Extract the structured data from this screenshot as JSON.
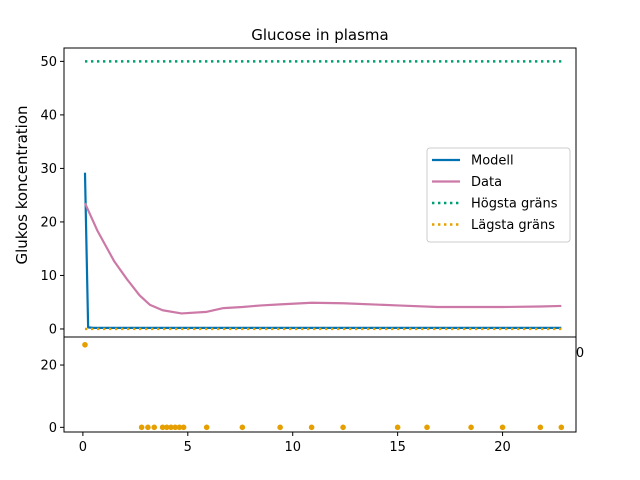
{
  "chart_data": [
    {
      "type": "line",
      "title": "Glucose in plasma",
      "xlabel": "",
      "ylabel": "Glukos koncentration",
      "xlim": [
        -0.9,
        23.5
      ],
      "ylim": [
        -1.5,
        52.5
      ],
      "yticks": [
        0,
        10,
        20,
        30,
        40,
        50
      ],
      "grid": false,
      "legend_position": "right",
      "series": [
        {
          "name": "Modell",
          "color": "#0072b2",
          "style": "solid",
          "x": [
            0.1,
            0.25,
            0.5,
            1,
            2,
            4,
            6,
            8,
            10,
            12,
            14,
            16,
            18,
            20,
            22,
            22.8
          ],
          "y": [
            29.2,
            0.3,
            0.2,
            0.2,
            0.2,
            0.2,
            0.2,
            0.2,
            0.2,
            0.2,
            0.2,
            0.2,
            0.2,
            0.2,
            0.2,
            0.2
          ]
        },
        {
          "name": "Data",
          "color": "#cc79a7",
          "style": "solid",
          "x": [
            0.1,
            0.7,
            1.5,
            2.1,
            2.7,
            3.2,
            3.8,
            4.7,
            5.9,
            6.7,
            7.6,
            8.5,
            9.4,
            10.9,
            12.4,
            15.0,
            16.9,
            18.5,
            20.0,
            21.8,
            22.8
          ],
          "y": [
            23.5,
            18.3,
            12.6,
            9.3,
            6.3,
            4.5,
            3.5,
            2.9,
            3.2,
            3.9,
            4.1,
            4.4,
            4.6,
            4.9,
            4.8,
            4.4,
            4.1,
            4.1,
            4.1,
            4.2,
            4.3
          ]
        },
        {
          "name": "Högsta gräns",
          "color": "#009e73",
          "style": "dotted",
          "x": [
            0.1,
            22.8
          ],
          "y": [
            50,
            50
          ]
        },
        {
          "name": "Lägsta gräns",
          "color": "#e69f00",
          "style": "dotted",
          "x": [
            0.1,
            22.8
          ],
          "y": [
            0,
            0
          ]
        }
      ]
    },
    {
      "type": "scatter",
      "title": "",
      "xlabel": "",
      "ylabel": "",
      "xlim": [
        -0.9,
        23.5
      ],
      "ylim": [
        -1.5,
        29.0
      ],
      "xticks": [
        0,
        5,
        10,
        15,
        20
      ],
      "yticks": [
        0,
        20
      ],
      "grid": false,
      "series": [
        {
          "color": "#e69f00",
          "x": [
            0.1,
            2.8,
            3.1,
            3.4,
            3.8,
            4.0,
            4.2,
            4.4,
            4.6,
            4.8,
            5.9,
            7.6,
            9.4,
            10.9,
            12.4,
            15.0,
            16.4,
            18.5,
            20.0,
            21.8,
            22.8
          ],
          "y": [
            26.5,
            0,
            0,
            0,
            0,
            0,
            0,
            0,
            0,
            0,
            0,
            0,
            0,
            0,
            0,
            0,
            0,
            0,
            0,
            0,
            0
          ]
        }
      ]
    }
  ],
  "stray_tick_label": "0"
}
